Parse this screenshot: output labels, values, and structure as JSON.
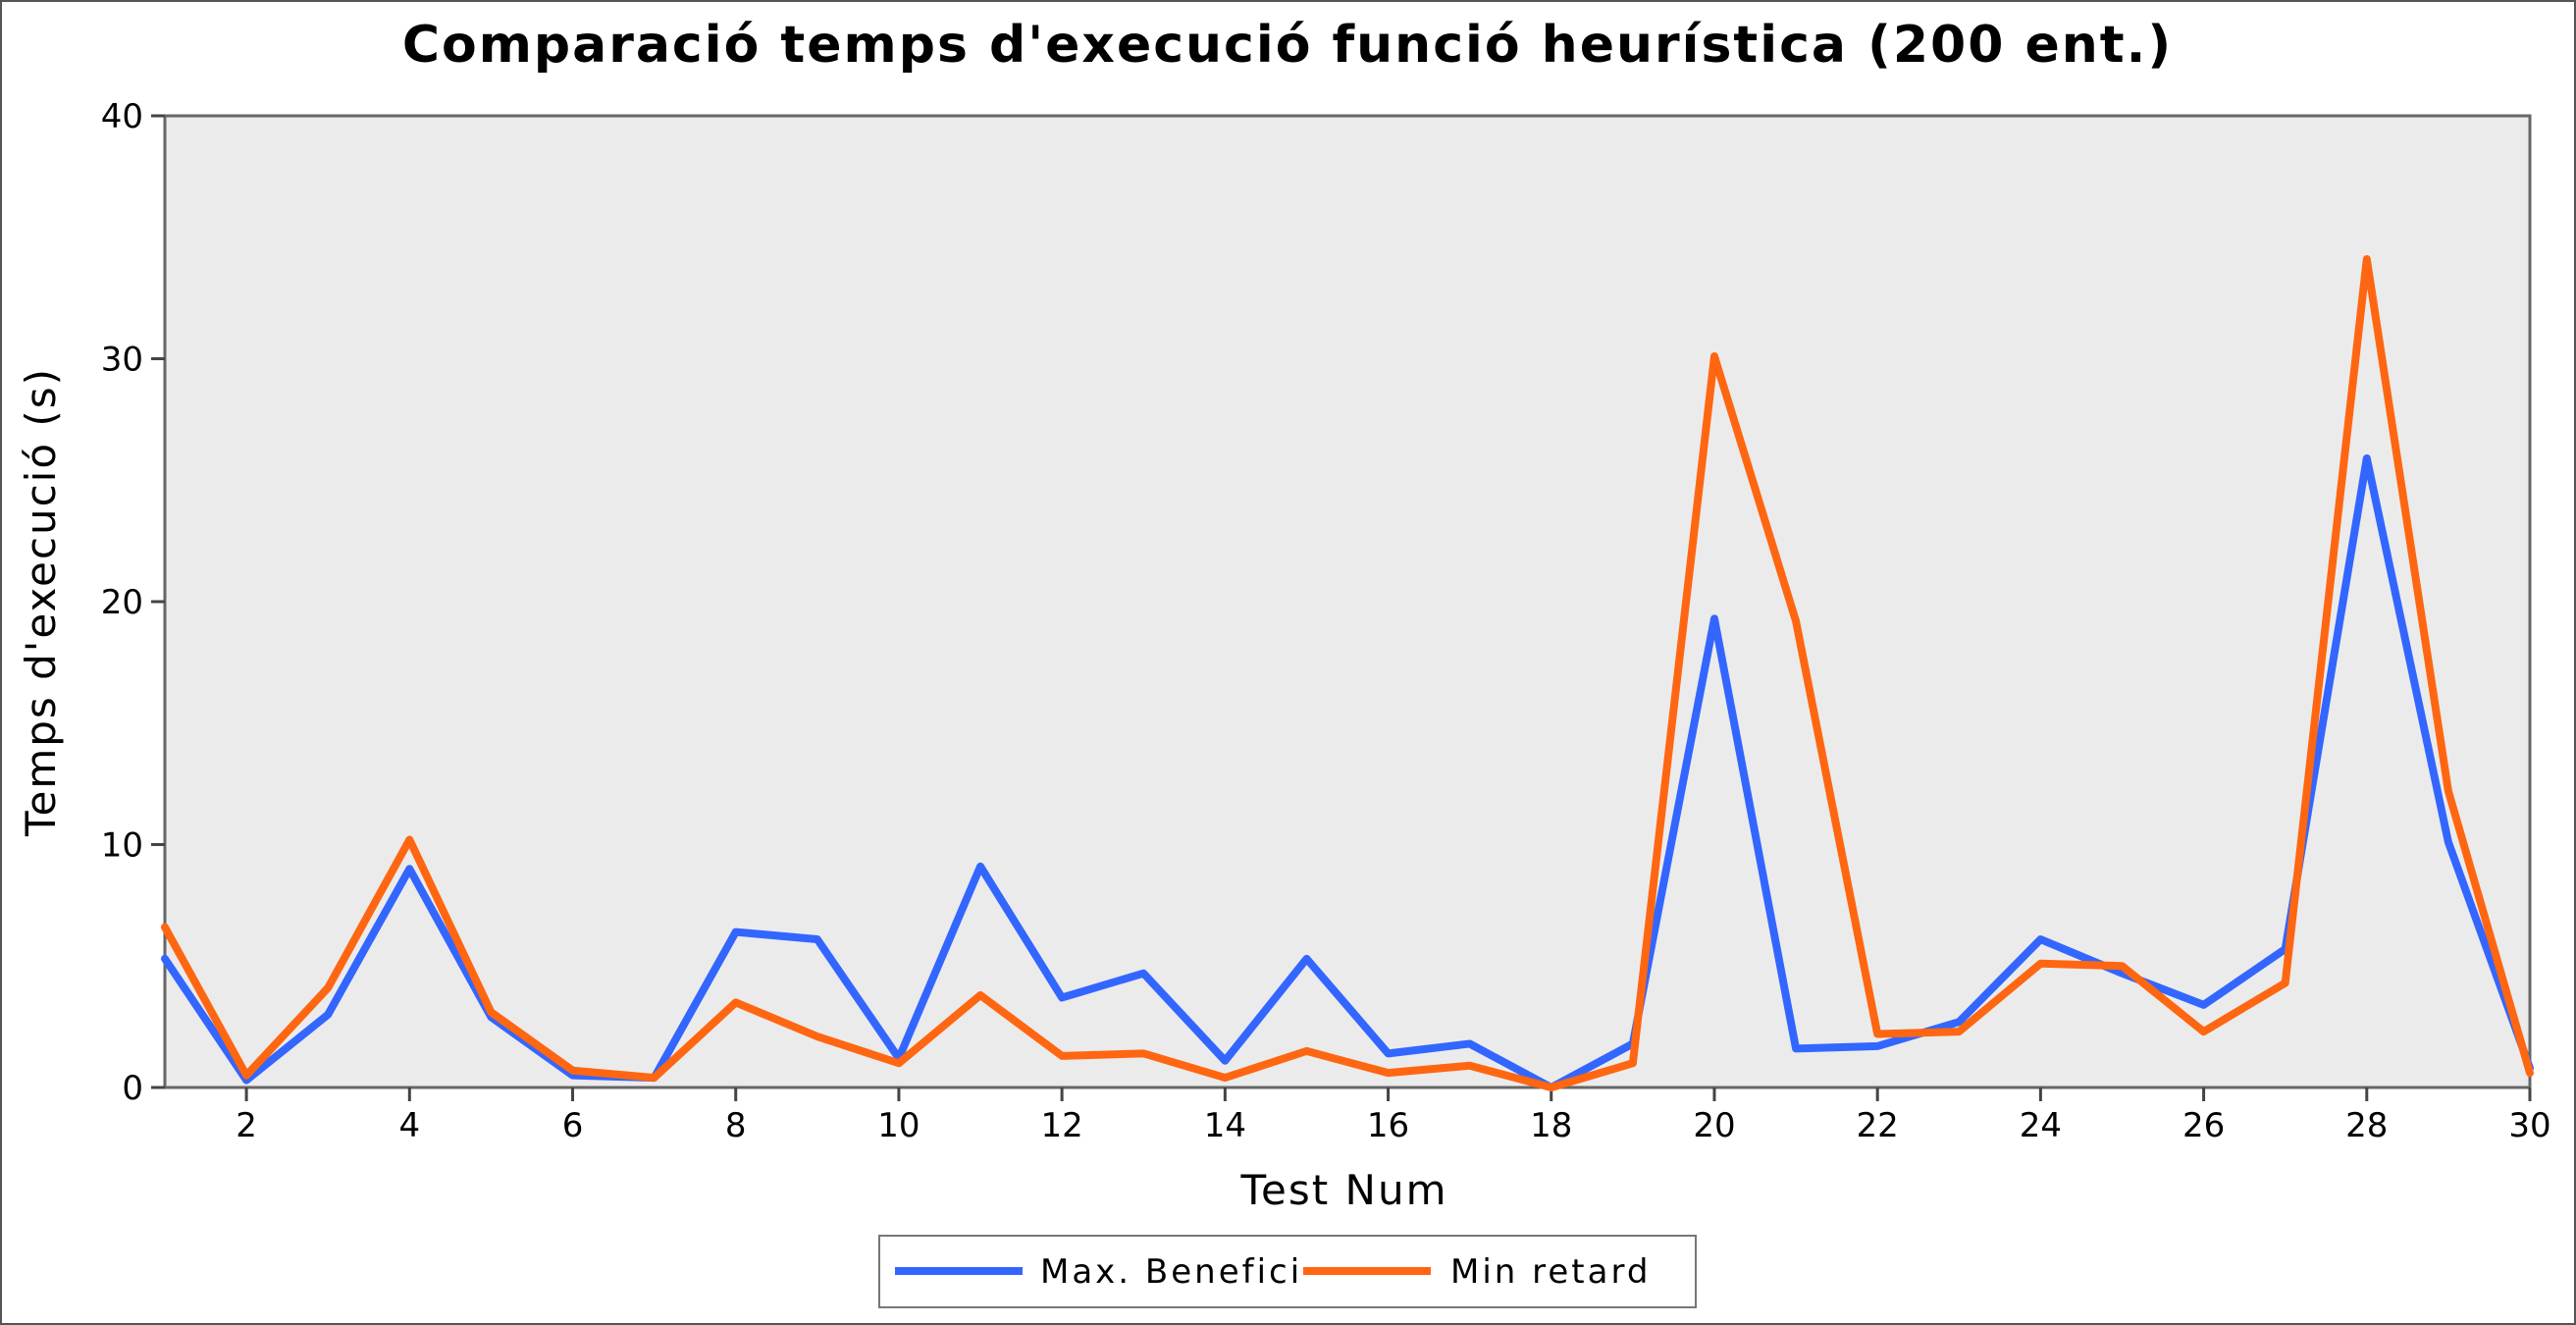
{
  "chart_data": {
    "type": "line",
    "title": "Comparació temps d'execució funció heurística (200 ent.)",
    "xlabel": "Test Num",
    "ylabel": "Temps d'execució (s)",
    "xlim": [
      1,
      30
    ],
    "ylim": [
      0,
      40
    ],
    "x_ticks": [
      2,
      4,
      6,
      8,
      10,
      12,
      14,
      16,
      18,
      20,
      22,
      24,
      26,
      28,
      30
    ],
    "y_ticks": [
      0,
      10,
      20,
      30,
      40
    ],
    "grid": false,
    "legend_position": "bottom-center",
    "x": [
      1,
      2,
      3,
      4,
      5,
      6,
      7,
      8,
      9,
      10,
      11,
      12,
      13,
      14,
      15,
      16,
      17,
      18,
      19,
      20,
      21,
      22,
      23,
      24,
      25,
      26,
      27,
      28,
      29,
      30
    ],
    "series": [
      {
        "name": "Max. Benefici",
        "color": "#3366ff",
        "values": [
          5.3,
          0.3,
          3.0,
          9.0,
          2.9,
          0.5,
          0.4,
          6.4,
          6.1,
          1.2,
          9.1,
          3.7,
          4.7,
          1.1,
          5.3,
          1.4,
          1.8,
          0.0,
          1.8,
          19.3,
          1.6,
          1.7,
          2.7,
          6.1,
          4.7,
          3.4,
          5.7,
          25.9,
          10.1,
          0.8
        ]
      },
      {
        "name": "Min retard",
        "color": "#ff6611",
        "values": [
          6.6,
          0.5,
          4.1,
          10.2,
          3.1,
          0.7,
          0.4,
          3.5,
          2.1,
          1.0,
          3.8,
          1.3,
          1.4,
          0.4,
          1.5,
          0.6,
          0.9,
          0.0,
          1.0,
          30.1,
          19.2,
          2.2,
          2.3,
          5.1,
          5.0,
          2.3,
          4.3,
          34.1,
          12.2,
          0.6
        ]
      }
    ],
    "plot_background": "#ebebeb"
  }
}
